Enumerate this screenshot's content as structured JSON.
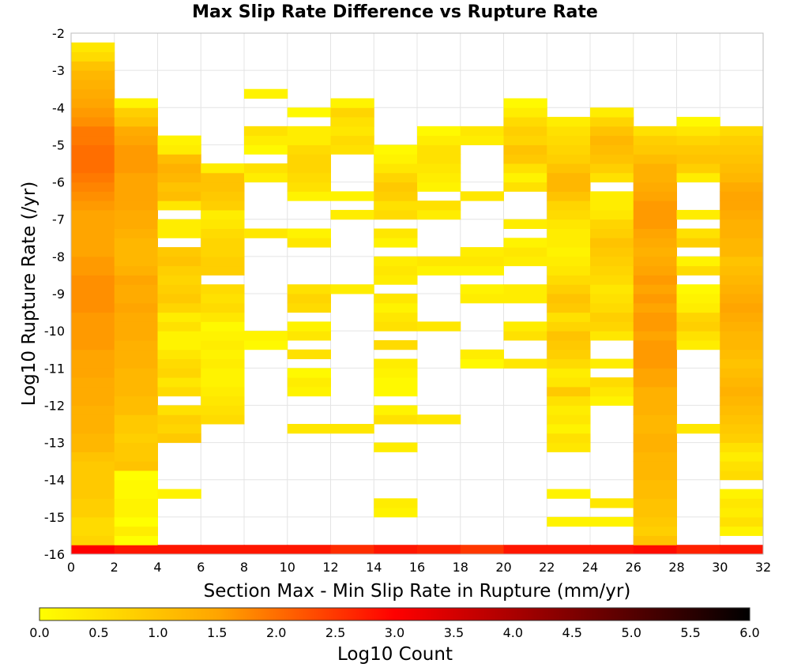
{
  "chart_data": {
    "type": "heatmap",
    "title": "Max Slip Rate Difference vs Rupture Rate",
    "xlabel": "Section Max - Min Slip Rate in Rupture (mm/yr)",
    "ylabel": "Log10 Rupture Rate (/yr)",
    "xlim": [
      0,
      32
    ],
    "ylim": [
      -16,
      -2
    ],
    "x_ticks": [
      "0",
      "2",
      "4",
      "6",
      "8",
      "10",
      "12",
      "14",
      "16",
      "18",
      "20",
      "22",
      "24",
      "26",
      "28",
      "30",
      "32"
    ],
    "y_ticks": [
      "-2",
      "-3",
      "-4",
      "-5",
      "-6",
      "-7",
      "-8",
      "-9",
      "-10",
      "-11",
      "-12",
      "-13",
      "-14",
      "-15",
      "-16"
    ],
    "grid": true,
    "x_bin_width": 2,
    "y_bin_height": 0.25,
    "colorbar": {
      "label": "Log10 Count",
      "range": [
        0,
        6
      ],
      "ticks": [
        "0.0",
        "0.5",
        "1.0",
        "1.5",
        "2.0",
        "2.5",
        "3.0",
        "3.5",
        "4.0",
        "4.5",
        "5.0",
        "5.5",
        "6.0"
      ],
      "colors": [
        "#ffff00",
        "#ffa500",
        "#ff0000",
        "#000000"
      ],
      "stops": [
        0,
        1.5,
        3.0,
        6.0
      ]
    },
    "columns": [
      {
        "x": 0,
        "y_start": -16.0,
        "values": [
          3.0,
          0.7,
          0.6,
          0.6,
          0.8,
          0.8,
          0.9,
          0.9,
          0.9,
          0.9,
          1.0,
          1.2,
          1.2,
          1.3,
          1.3,
          1.3,
          1.4,
          1.4,
          1.4,
          1.5,
          1.5,
          1.5,
          1.6,
          1.6,
          1.6,
          1.6,
          1.7,
          1.7,
          1.7,
          1.7,
          1.6,
          1.6,
          1.5,
          1.5,
          1.5,
          1.5,
          1.5,
          1.6,
          1.7,
          1.8,
          1.9,
          2.0,
          2.0,
          2.0,
          1.9,
          1.9,
          1.7,
          1.6,
          1.5,
          1.4,
          1.3,
          1.2,
          1.0,
          0.6,
          0.4
        ]
      },
      {
        "x": 2,
        "y_start": -16.0,
        "values": [
          2.8,
          0.0,
          0.3,
          0.0,
          0.2,
          0.2,
          0.1,
          0.1,
          0.0,
          1.0,
          0.9,
          0.9,
          0.8,
          0.9,
          0.9,
          1.1,
          1.1,
          1.2,
          1.2,
          1.2,
          1.3,
          1.3,
          1.3,
          1.4,
          1.4,
          1.4,
          1.5,
          1.4,
          1.4,
          1.5,
          1.3,
          1.2,
          1.2,
          1.2,
          1.3,
          1.4,
          1.4,
          1.5,
          1.5,
          1.5,
          1.5,
          1.6,
          1.6,
          1.6,
          1.5,
          1.4,
          1.0,
          0.8,
          0.2
        ]
      },
      {
        "x": 4,
        "y_start": -16.0,
        "values": [
          2.8,
          null,
          null,
          null,
          null,
          null,
          0.2
        ]
      },
      {
        "x": 4,
        "y_start": -13.0,
        "values": [
          0.9,
          0.7,
          0.8,
          0.5,
          null,
          0.6,
          0.4,
          0.7,
          0.6,
          0.4,
          0.2,
          0.2,
          0.5,
          0.3,
          0.7,
          0.9,
          0.8,
          0.7,
          0.8,
          1.0,
          0.9,
          null,
          0.3,
          0.3,
          null,
          0.4,
          1.1,
          1.0,
          1.2,
          1.3,
          1.1,
          0.3,
          0.2
        ]
      },
      {
        "x": 6,
        "y_start": -16.0,
        "values": [
          2.8
        ]
      },
      {
        "x": 6,
        "y_start": -12.5,
        "values": [
          0.6,
          0.5,
          0.4,
          0.3,
          0.2,
          0.2,
          0.3,
          0.2,
          0.3,
          0.2,
          0.1,
          0.4,
          0.6,
          0.5,
          0.6,
          null,
          0.8,
          0.8,
          0.7,
          0.7,
          0.6,
          0.4,
          0.3,
          0.8,
          0.9,
          1.0,
          1.0,
          0.3
        ]
      },
      {
        "x": 8,
        "y_start": -16.0,
        "values": [
          2.8
        ]
      },
      {
        "x": 8,
        "y_start": -10.5,
        "values": [
          0.1,
          0.2
        ]
      },
      {
        "x": 8,
        "y_start": -7.5,
        "values": [
          0.4
        ]
      },
      {
        "x": 8,
        "y_start": -6.0,
        "values": [
          0.3,
          0.5
        ]
      },
      {
        "x": 8,
        "y_start": -5.25,
        "values": [
          0.1,
          0.3,
          0.5
        ]
      },
      {
        "x": 8,
        "y_start": -3.75,
        "values": [
          0.2
        ]
      },
      {
        "x": 10,
        "y_start": -16.0,
        "values": [
          2.8
        ]
      },
      {
        "x": 10,
        "y_start": -12.75,
        "values": [
          0.4
        ]
      },
      {
        "x": 10,
        "y_start": -11.75,
        "values": [
          0.2,
          0.3,
          0.1,
          null,
          0.5,
          null,
          0.4,
          0.2,
          null,
          0.6,
          0.7,
          0.5
        ]
      },
      {
        "x": 10,
        "y_start": -7.75,
        "values": [
          0.4,
          0.2
        ]
      },
      {
        "x": 10,
        "y_start": -6.5,
        "values": [
          0.2,
          0.5,
          0.6,
          0.7,
          0.7,
          0.6,
          0.3,
          0.3,
          null,
          0.1
        ]
      },
      {
        "x": 12,
        "y_start": -16.0,
        "values": [
          2.6
        ]
      },
      {
        "x": 12,
        "y_start": -12.75,
        "values": [
          0.4
        ]
      },
      {
        "x": 12,
        "y_start": -9.0,
        "values": [
          0.3
        ]
      },
      {
        "x": 12,
        "y_start": -7.0,
        "values": [
          0.3,
          null,
          0.2
        ]
      },
      {
        "x": 12,
        "y_start": -5.25,
        "values": [
          0.5,
          0.6,
          0.4,
          0.5,
          0.7,
          0.2
        ]
      },
      {
        "x": 14,
        "y_start": -16.0,
        "values": [
          2.8
        ]
      },
      {
        "x": 14,
        "y_start": -15.0,
        "values": [
          0.2,
          0.3
        ]
      },
      {
        "x": 14,
        "y_start": -13.25,
        "values": [
          0.3
        ]
      },
      {
        "x": 14,
        "y_start": -12.5,
        "values": [
          0.5,
          0.2,
          null,
          0.1,
          0.1,
          0.2,
          0.3,
          null,
          0.6,
          null,
          0.5,
          0.4,
          0.2,
          0.4,
          null,
          0.3,
          0.4,
          0.3,
          null,
          0.2,
          0.4,
          null,
          0.6,
          0.5,
          0.8,
          0.9,
          0.7,
          0.4,
          0.2,
          0.1
        ]
      },
      {
        "x": 16,
        "y_start": -16.0,
        "values": [
          2.7
        ]
      },
      {
        "x": 16,
        "y_start": -12.5,
        "values": [
          0.4
        ]
      },
      {
        "x": 16,
        "y_start": -10.0,
        "values": [
          0.4
        ]
      },
      {
        "x": 16,
        "y_start": -8.5,
        "values": [
          0.2,
          0.4
        ]
      },
      {
        "x": 16,
        "y_start": -7.0,
        "values": [
          0.3,
          0.5
        ]
      },
      {
        "x": 16,
        "y_start": -6.25,
        "values": [
          0.2,
          0.3,
          0.4,
          0.5,
          0.5,
          0.3,
          0.1
        ]
      },
      {
        "x": 18,
        "y_start": -16.0,
        "values": [
          2.5
        ]
      },
      {
        "x": 18,
        "y_start": -11.0,
        "values": [
          0.1,
          0.3
        ]
      },
      {
        "x": 18,
        "y_start": -9.25,
        "values": [
          0.3,
          0.2,
          null,
          0.2,
          0.4,
          0.3
        ]
      },
      {
        "x": 18,
        "y_start": -6.5,
        "values": [
          0.4
        ]
      },
      {
        "x": 18,
        "y_start": -5.0,
        "values": [
          0.3,
          0.4
        ]
      },
      {
        "x": 20,
        "y_start": -16.0,
        "values": [
          2.8
        ]
      },
      {
        "x": 20,
        "y_start": -11.0,
        "values": [
          0.4
        ]
      },
      {
        "x": 20,
        "y_start": -10.25,
        "values": [
          0.5,
          0.3
        ]
      },
      {
        "x": 20,
        "y_start": -9.25,
        "values": [
          0.3,
          0.3
        ]
      },
      {
        "x": 20,
        "y_start": -8.25,
        "values": [
          0.3,
          0.4,
          0.2
        ]
      },
      {
        "x": 20,
        "y_start": -7.25,
        "values": [
          0.3
        ]
      },
      {
        "x": 20,
        "y_start": -6.25,
        "values": [
          0.5,
          0.2,
          0.5,
          0.9,
          1.0,
          0.7,
          0.8,
          0.6,
          0.3,
          0.1
        ]
      },
      {
        "x": 22,
        "y_start": -16.0,
        "values": [
          2.8
        ]
      },
      {
        "x": 22,
        "y_start": -15.25,
        "values": [
          0.2
        ]
      },
      {
        "x": 22,
        "y_start": -14.5,
        "values": [
          0.2
        ]
      },
      {
        "x": 22,
        "y_start": -13.25,
        "values": [
          0.4,
          0.5,
          0.2,
          0.4,
          0.3,
          0.5,
          0.9,
          0.4,
          0.3,
          0.6,
          0.8,
          0.9,
          1.0,
          0.7,
          0.5,
          0.9,
          1.0,
          0.8,
          0.6,
          0.4,
          0.3,
          0.2,
          0.3,
          0.3,
          0.4,
          0.6,
          0.7,
          1.0,
          1.2,
          1.2,
          1.0,
          0.8,
          0.7,
          0.6,
          0.5,
          0.3
        ]
      },
      {
        "x": 24,
        "y_start": -16.0,
        "values": [
          2.8
        ]
      },
      {
        "x": 24,
        "y_start": -15.25,
        "values": [
          0.2
        ]
      },
      {
        "x": 24,
        "y_start": -14.75,
        "values": [
          0.4
        ]
      },
      {
        "x": 24,
        "y_start": -12.0,
        "values": [
          0.2,
          0.4,
          0.6,
          null,
          0.3,
          null,
          null,
          0.4,
          0.7,
          0.8,
          0.6,
          0.5,
          0.4,
          0.6,
          0.7,
          0.8,
          0.9,
          1.0,
          0.8,
          0.7,
          0.4,
          0.3,
          0.3,
          null,
          0.5,
          0.8,
          1.0,
          1.1,
          1.2,
          1.0,
          0.7,
          0.3
        ]
      },
      {
        "x": 26,
        "y_start": -16.0,
        "values": [
          2.9,
          1.0,
          0.8,
          0.9,
          1.0,
          1.0,
          1.1,
          1.1,
          1.2,
          1.2,
          1.2,
          1.3,
          1.3,
          1.2,
          1.2,
          1.3,
          1.3,
          1.3,
          1.5,
          1.5,
          1.6,
          1.6,
          1.6,
          1.5,
          1.6,
          1.6,
          1.5,
          1.6,
          1.5,
          1.6,
          1.5,
          1.4,
          1.3,
          1.4,
          1.5,
          1.6,
          1.6,
          1.6,
          1.5,
          1.4,
          1.3,
          1.3,
          1.1,
          0.9,
          0.8,
          0.5
        ]
      },
      {
        "x": 28,
        "y_start": -16.0,
        "values": [
          2.7
        ]
      },
      {
        "x": 28,
        "y_start": -12.75,
        "values": [
          0.4
        ]
      },
      {
        "x": 28,
        "y_start": -10.5,
        "values": [
          0.3,
          0.5,
          0.8,
          0.7,
          0.3,
          0.2,
          0.1,
          null,
          0.6,
          0.2,
          null,
          0.8,
          0.5,
          null,
          0.3,
          null,
          null,
          null,
          0.3,
          0.8,
          1.0,
          0.9,
          0.7,
          0.4,
          0.1
        ]
      },
      {
        "x": 30,
        "y_start": -16.0,
        "values": [
          2.8
        ]
      },
      {
        "x": 30,
        "y_start": -15.5,
        "values": [
          0.2,
          0.5,
          0.3,
          0.4,
          0.2
        ]
      },
      {
        "x": 30,
        "y_start": -14.0,
        "values": [
          0.6,
          0.5,
          0.3,
          0.5,
          0.8,
          0.9,
          1.0,
          1.1,
          1.2,
          1.3,
          1.2,
          1.1,
          1.0,
          1.1,
          1.2,
          1.2,
          1.3,
          1.4,
          1.5,
          1.4,
          1.3,
          1.2,
          1.1,
          1.0,
          1.2,
          1.2,
          1.3,
          1.3,
          1.4,
          1.5,
          1.5,
          1.4,
          1.2,
          1.1,
          1.0,
          0.9,
          0.8,
          0.6
        ]
      }
    ]
  }
}
